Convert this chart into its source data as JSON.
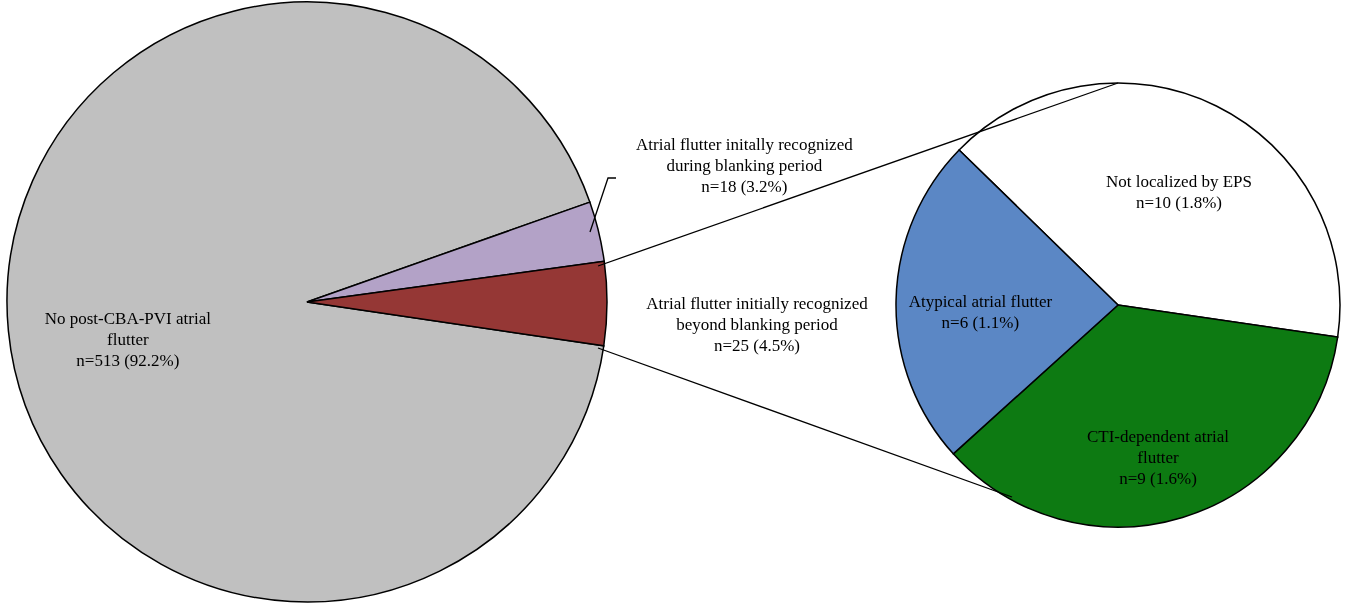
{
  "chart_data": [
    {
      "type": "pie",
      "categories": [
        "No post-CBA-PVI atrial flutter",
        "Atrial flutter initally recognized during blanking period",
        "Atrial flutter initially recognized beyond blanking period"
      ],
      "values": [
        513,
        18,
        25
      ],
      "value_labels": [
        "n=513 (92.2%)",
        "n=18 (3.2%)",
        "n=25 (4.5%)"
      ],
      "colors": [
        "#c0c0c0",
        "#b3a2c7",
        "#953735"
      ]
    },
    {
      "type": "pie",
      "categories": [
        "Not localized by EPS",
        "CTI-dependent atrial flutter",
        "Atypical atrial flutter"
      ],
      "values": [
        10,
        9,
        6
      ],
      "value_labels": [
        "n=10 (1.8%)",
        "n=9 (1.6%)",
        "n=6 (1.1%)"
      ],
      "colors": [
        "#ffffff",
        "#0d7a12",
        "#5b87c5"
      ]
    }
  ]
}
